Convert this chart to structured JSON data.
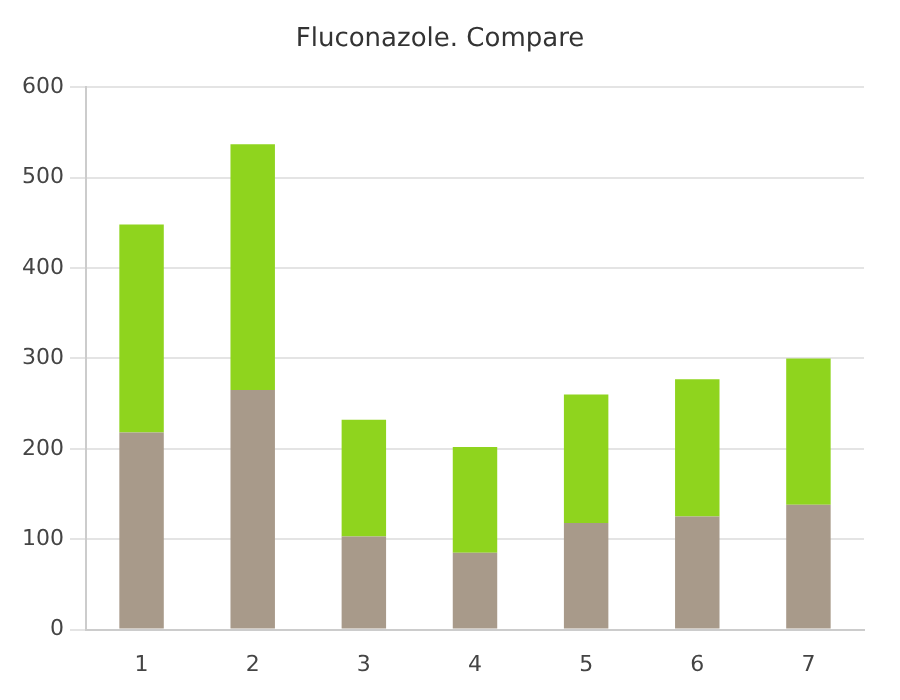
{
  "chart_data": {
    "type": "bar",
    "title": "Fluconazole. Compare",
    "categories": [
      "1",
      "2",
      "3",
      "4",
      "5",
      "6",
      "7"
    ],
    "stacked": true,
    "series": [
      {
        "color": "#a89a8a",
        "values": [
          218,
          265,
          103,
          85,
          118,
          125,
          138
        ]
      },
      {
        "color": "#8fd41e",
        "values": [
          230,
          272,
          129,
          117,
          142,
          152,
          162
        ]
      }
    ],
    "ylim": [
      0,
      600
    ],
    "yticks": [
      0,
      100,
      200,
      300,
      400,
      500,
      600
    ],
    "grid": "y",
    "legend": false
  }
}
